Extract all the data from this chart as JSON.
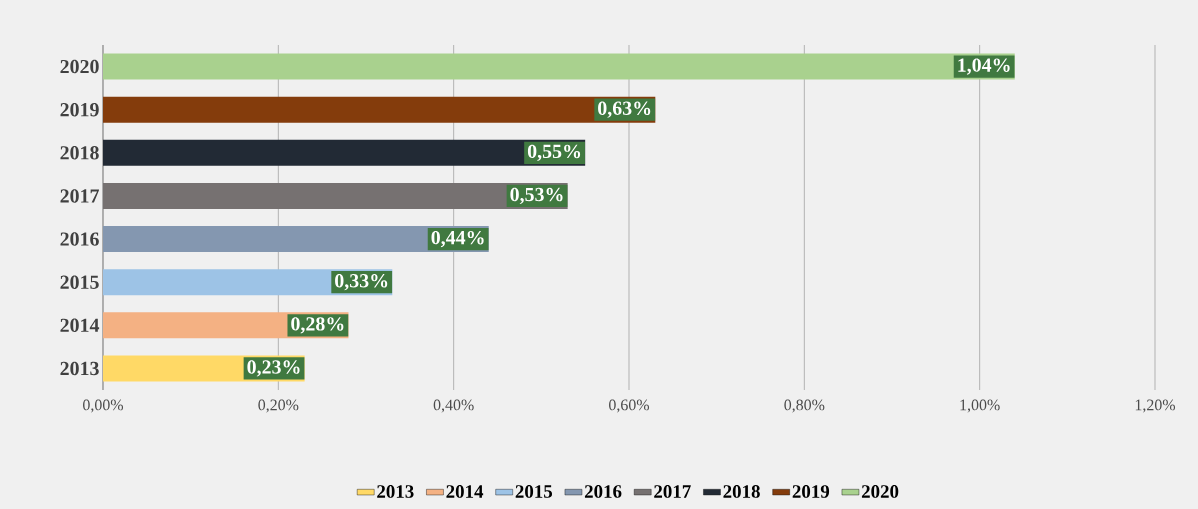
{
  "chart_data": {
    "type": "bar",
    "orientation": "horizontal",
    "categories": [
      "2020",
      "2019",
      "2018",
      "2017",
      "2016",
      "2015",
      "2014",
      "2013"
    ],
    "series": [
      {
        "name": "2013",
        "color": "#ffd966",
        "values": [
          null,
          null,
          null,
          null,
          null,
          null,
          null,
          0.23
        ],
        "value_labels": [
          null,
          null,
          null,
          null,
          null,
          null,
          null,
          "0,23%"
        ]
      },
      {
        "name": "2014",
        "color": "#f4b183",
        "values": [
          null,
          null,
          null,
          null,
          null,
          null,
          0.28,
          null
        ],
        "value_labels": [
          null,
          null,
          null,
          null,
          null,
          null,
          "0,28%",
          null
        ]
      },
      {
        "name": "2015",
        "color": "#9dc3e6",
        "values": [
          null,
          null,
          null,
          null,
          null,
          0.33,
          null,
          null
        ],
        "value_labels": [
          null,
          null,
          null,
          null,
          null,
          "0,33%",
          null,
          null
        ]
      },
      {
        "name": "2016",
        "color": "#8497b0",
        "values": [
          null,
          null,
          null,
          null,
          0.44,
          null,
          null,
          null
        ],
        "value_labels": [
          null,
          null,
          null,
          null,
          "0,44%",
          null,
          null,
          null
        ]
      },
      {
        "name": "2017",
        "color": "#767171",
        "values": [
          null,
          null,
          null,
          0.53,
          null,
          null,
          null,
          null
        ],
        "value_labels": [
          null,
          null,
          null,
          "0,53%",
          null,
          null,
          null,
          null
        ]
      },
      {
        "name": "2018",
        "color": "#222a35",
        "values": [
          null,
          null,
          0.55,
          null,
          null,
          null,
          null,
          null
        ],
        "value_labels": [
          null,
          null,
          "0,55%",
          null,
          null,
          null,
          null,
          null
        ]
      },
      {
        "name": "2019",
        "color": "#843c0c",
        "values": [
          null,
          0.63,
          null,
          null,
          null,
          null,
          null,
          null
        ],
        "value_labels": [
          null,
          "0,63%",
          null,
          null,
          null,
          null,
          null,
          null
        ]
      },
      {
        "name": "2020",
        "color": "#a9d18e",
        "values": [
          1.04,
          null,
          null,
          null,
          null,
          null,
          null,
          null
        ],
        "value_labels": [
          "1,04%",
          null,
          null,
          null,
          null,
          null,
          null,
          null
        ]
      }
    ],
    "xlim": [
      0,
      1.2
    ],
    "xticks": [
      {
        "value": 0,
        "label": "0,00%"
      },
      {
        "value": 0.2,
        "label": "0,20%"
      },
      {
        "value": 0.4,
        "label": "0,40%"
      },
      {
        "value": 0.6,
        "label": "0,60%"
      },
      {
        "value": 0.8,
        "label": "0,80%"
      },
      {
        "value": 1.0,
        "label": "1,00%"
      },
      {
        "value": 1.2,
        "label": "1,20%"
      }
    ],
    "grid": "x",
    "legend": "bottom"
  }
}
